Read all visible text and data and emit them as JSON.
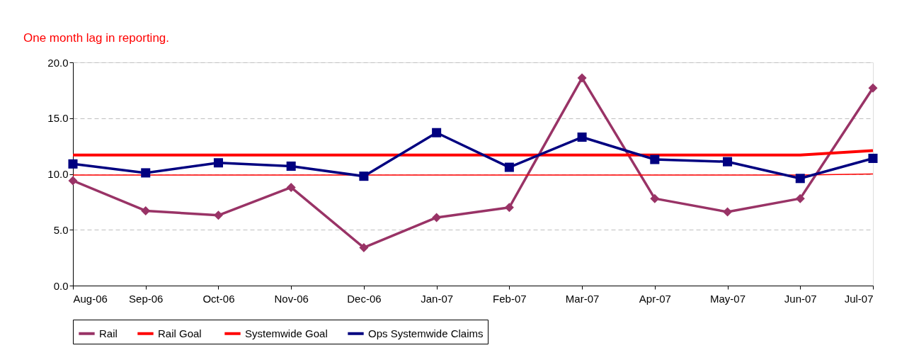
{
  "chart_data": {
    "type": "line",
    "annotations": [
      "One month lag in reporting."
    ],
    "categories": [
      "Aug-06",
      "Sep-06",
      "Oct-06",
      "Nov-06",
      "Dec-06",
      "Jan-07",
      "Feb-07",
      "Mar-07",
      "Apr-07",
      "May-07",
      "Jun-07",
      "Jul-07"
    ],
    "series": [
      {
        "name": "Rail",
        "color": "#993366",
        "marker": "diamond",
        "values": [
          9.4,
          6.7,
          6.3,
          8.8,
          3.4,
          6.1,
          7.0,
          18.6,
          7.8,
          6.6,
          7.8,
          17.7
        ]
      },
      {
        "name": "Rail  Goal",
        "color": "#ff0000",
        "marker": "none",
        "values": [
          9.9,
          9.9,
          9.9,
          9.9,
          9.9,
          9.9,
          9.9,
          9.9,
          9.9,
          9.9,
          9.9,
          10.0
        ]
      },
      {
        "name": "Systemwide Goal",
        "color": "#ff0000",
        "marker": "none",
        "values": [
          11.7,
          11.7,
          11.7,
          11.7,
          11.7,
          11.7,
          11.7,
          11.7,
          11.7,
          11.7,
          11.7,
          12.1
        ]
      },
      {
        "name": "Ops Systemwide Claims",
        "color": "#000080",
        "marker": "square",
        "values": [
          10.9,
          10.1,
          11.0,
          10.7,
          9.8,
          13.7,
          10.6,
          13.3,
          11.3,
          11.1,
          9.6,
          11.4
        ]
      }
    ],
    "ylim": [
      0,
      20
    ],
    "yticks": [
      {
        "value": 0,
        "label": "0.0"
      },
      {
        "value": 5,
        "label": "5.0"
      },
      {
        "value": 10,
        "label": "10.0"
      },
      {
        "value": 15,
        "label": "15.0"
      },
      {
        "value": 20,
        "label": "20.0"
      }
    ],
    "grid": "y",
    "legend": "bottom"
  }
}
